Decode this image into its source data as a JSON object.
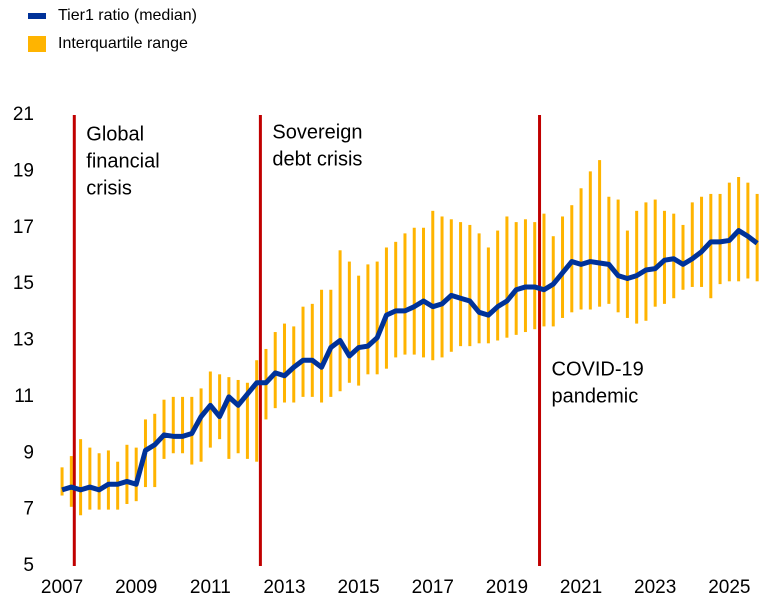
{
  "chart_data": {
    "type": "line",
    "x": [
      2007,
      2007.25,
      2007.5,
      2007.75,
      2008,
      2008.25,
      2008.5,
      2008.75,
      2009,
      2009.25,
      2009.5,
      2009.75,
      2010,
      2010.25,
      2010.5,
      2010.75,
      2011,
      2011.25,
      2011.5,
      2011.75,
      2012,
      2012.25,
      2012.5,
      2012.75,
      2013,
      2013.25,
      2013.5,
      2013.75,
      2014,
      2014.25,
      2014.5,
      2014.75,
      2015,
      2015.25,
      2015.5,
      2015.75,
      2016,
      2016.25,
      2016.5,
      2016.75,
      2017,
      2017.25,
      2017.5,
      2017.75,
      2018,
      2018.25,
      2018.5,
      2018.75,
      2019,
      2019.25,
      2019.5,
      2019.75,
      2020,
      2020.25,
      2020.5,
      2020.75,
      2021,
      2021.25,
      2021.5,
      2021.75,
      2022,
      2022.25,
      2022.5,
      2022.75,
      2023,
      2023.25,
      2023.5,
      2023.75,
      2024,
      2024.25,
      2024.5,
      2024.75,
      2025,
      2025.25,
      2025.5,
      2025.75
    ],
    "series": [
      {
        "name": "Tier1 ratio (median)",
        "color": "#003299",
        "values": [
          7.7,
          7.8,
          7.7,
          7.8,
          7.7,
          7.9,
          7.9,
          8.0,
          7.9,
          9.1,
          9.3,
          9.65,
          9.6,
          9.6,
          9.7,
          10.3,
          10.7,
          10.3,
          11.0,
          10.7,
          11.1,
          11.5,
          11.5,
          11.85,
          11.75,
          12.05,
          12.3,
          12.3,
          12.05,
          12.75,
          13.0,
          12.45,
          12.75,
          12.8,
          13.1,
          13.9,
          14.05,
          14.05,
          14.2,
          14.4,
          14.2,
          14.3,
          14.6,
          14.5,
          14.4,
          14.0,
          13.9,
          14.2,
          14.4,
          14.8,
          14.9,
          14.9,
          14.8,
          15.0,
          15.4,
          15.8,
          15.7,
          15.8,
          15.75,
          15.7,
          15.3,
          15.2,
          15.3,
          15.5,
          15.55,
          15.85,
          15.9,
          15.7,
          15.9,
          16.15,
          16.5,
          16.5,
          16.55,
          16.9,
          16.7,
          16.45
        ]
      },
      {
        "name": "Interquartile range",
        "color": "#ffb400",
        "low": [
          7.5,
          7.1,
          6.8,
          7.0,
          7.0,
          7.0,
          7.0,
          7.2,
          7.3,
          7.8,
          7.8,
          8.8,
          9.0,
          9.0,
          8.6,
          8.7,
          9.2,
          9.5,
          8.8,
          9.0,
          8.8,
          8.7,
          10.2,
          10.6,
          10.8,
          10.8,
          11.0,
          11.0,
          10.8,
          11.0,
          11.2,
          11.5,
          11.4,
          11.8,
          11.8,
          12.0,
          12.4,
          12.5,
          12.5,
          12.4,
          12.3,
          12.4,
          12.6,
          12.8,
          12.8,
          12.9,
          12.9,
          13.0,
          13.1,
          13.2,
          13.3,
          13.4,
          13.5,
          13.5,
          13.8,
          14.0,
          14.1,
          14.1,
          14.2,
          14.3,
          14.0,
          13.8,
          13.6,
          13.7,
          14.2,
          14.3,
          14.5,
          14.8,
          14.9,
          14.9,
          14.5,
          15.0,
          15.1,
          15.1,
          15.2,
          15.1
        ],
        "high": [
          8.5,
          8.9,
          9.5,
          9.2,
          9.0,
          9.1,
          8.7,
          9.3,
          9.2,
          10.2,
          10.4,
          10.9,
          11.0,
          11.0,
          11.0,
          11.3,
          11.9,
          11.8,
          11.7,
          11.6,
          11.5,
          12.3,
          12.7,
          13.3,
          13.6,
          13.5,
          14.2,
          14.3,
          14.8,
          14.8,
          16.2,
          15.8,
          15.3,
          15.7,
          15.8,
          16.3,
          16.5,
          16.8,
          17.0,
          17.0,
          17.6,
          17.4,
          17.3,
          17.2,
          17.1,
          16.8,
          16.3,
          16.9,
          17.4,
          17.2,
          17.3,
          17.2,
          17.5,
          16.7,
          17.4,
          17.8,
          18.4,
          19.0,
          19.4,
          18.1,
          18.0,
          16.9,
          17.6,
          17.9,
          18.0,
          17.6,
          17.5,
          17.1,
          17.9,
          18.1,
          18.2,
          18.2,
          18.6,
          18.8,
          18.6,
          18.2
        ]
      }
    ],
    "events": [
      {
        "x": 2007.33,
        "lines": [
          "Global",
          "financial",
          "crisis"
        ],
        "color": "#c00000"
      },
      {
        "x": 2012.35,
        "lines": [
          "Sovereign",
          "debt crisis"
        ],
        "color": "#c00000"
      },
      {
        "x": 2019.88,
        "lines": [
          "COVID-19",
          "pandemic"
        ],
        "color": "#c00000"
      }
    ],
    "xlim": [
      2006.85,
      2025.8
    ],
    "xticks": [
      2007,
      2009,
      2011,
      2013,
      2015,
      2017,
      2019,
      2021,
      2023,
      2025
    ],
    "ylim": [
      5,
      21
    ],
    "yticks": [
      5,
      7,
      9,
      11,
      13,
      15,
      17,
      19,
      21
    ],
    "grid": false
  }
}
